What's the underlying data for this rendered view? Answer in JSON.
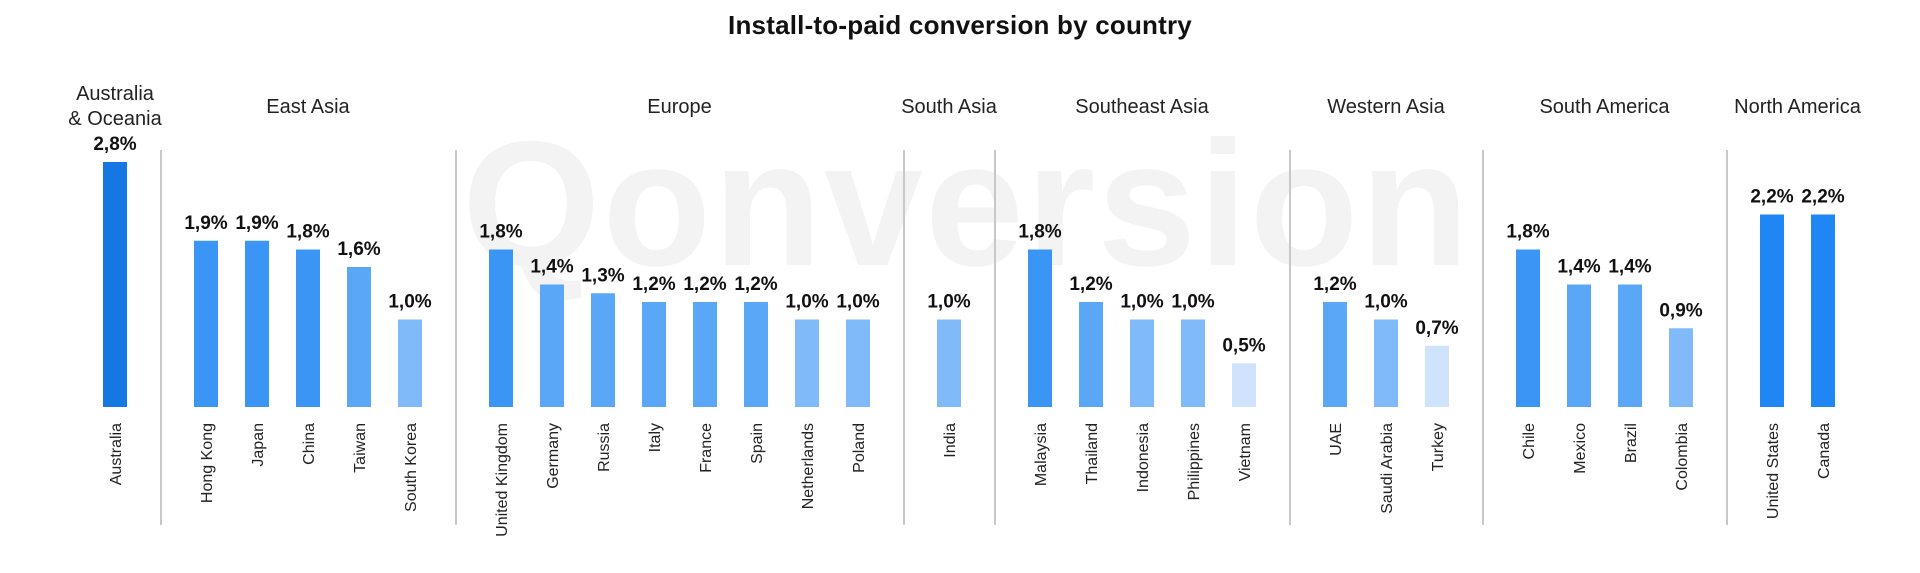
{
  "title": "Install-to-paid conversion by country",
  "watermark": "Qonversion",
  "chart_data": {
    "type": "bar",
    "title": "Install-to-paid conversion by country",
    "value_format": "percent with comma decimal separator",
    "ylim": [
      0,
      3.0
    ],
    "grid": false,
    "groups": [
      {
        "name": "Australia & Oceania",
        "name_lines": [
          "Australia",
          "& Oceania"
        ],
        "categories": [
          "Australia"
        ],
        "values": [
          2.8
        ],
        "labels": [
          "2,8%"
        ]
      },
      {
        "name": "East Asia",
        "name_lines": [
          "East Asia"
        ],
        "categories": [
          "Hong Kong",
          "Japan",
          "China",
          "Taiwan",
          "South Korea"
        ],
        "values": [
          1.9,
          1.9,
          1.8,
          1.6,
          1.0
        ],
        "labels": [
          "1,9%",
          "1,9%",
          "1,8%",
          "1,6%",
          "1,0%"
        ]
      },
      {
        "name": "Europe",
        "name_lines": [
          "Europe"
        ],
        "categories": [
          "United Kingdom",
          "Germany",
          "Russia",
          "Italy",
          "France",
          "Spain",
          "Netherlands",
          "Poland"
        ],
        "values": [
          1.8,
          1.4,
          1.3,
          1.2,
          1.2,
          1.2,
          1.0,
          1.0
        ],
        "labels": [
          "1,8%",
          "1,4%",
          "1,3%",
          "1,2%",
          "1,2%",
          "1,2%",
          "1,0%",
          "1,0%"
        ]
      },
      {
        "name": "South Asia",
        "name_lines": [
          "South Asia"
        ],
        "categories": [
          "India"
        ],
        "values": [
          1.0
        ],
        "labels": [
          "1,0%"
        ]
      },
      {
        "name": "Southeast Asia",
        "name_lines": [
          "Southeast Asia"
        ],
        "categories": [
          "Malaysia",
          "Thailand",
          "Indonesia",
          "Philippines",
          "Vietnam"
        ],
        "values": [
          1.8,
          1.2,
          1.0,
          1.0,
          0.5
        ],
        "labels": [
          "1,8%",
          "1,2%",
          "1,0%",
          "1,0%",
          "0,5%"
        ]
      },
      {
        "name": "Western Asia",
        "name_lines": [
          "Western Asia"
        ],
        "categories": [
          "UAE",
          "Saudi Arabia",
          "Turkey"
        ],
        "values": [
          1.2,
          1.0,
          0.7
        ],
        "labels": [
          "1,2%",
          "1,0%",
          "0,7%"
        ]
      },
      {
        "name": "South America",
        "name_lines": [
          "South America"
        ],
        "categories": [
          "Chile",
          "Mexico",
          "Brazil",
          "Colombia"
        ],
        "values": [
          1.8,
          1.4,
          1.4,
          0.9
        ],
        "labels": [
          "1,8%",
          "1,4%",
          "1,4%",
          "0,9%"
        ]
      },
      {
        "name": "North America",
        "name_lines": [
          "North America"
        ],
        "categories": [
          "United States",
          "Canada"
        ],
        "values": [
          2.2,
          2.2
        ],
        "labels": [
          "2,2%",
          "2,2%"
        ]
      }
    ],
    "colors": {
      "very_high": "#1577e2",
      "high": "#2086f3",
      "upper_mid": "#3a95f5",
      "mid": "#5aa7f7",
      "lower_mid": "#80baf9",
      "low": "#cfe4fc",
      "divider": "#c8c8c8"
    }
  }
}
